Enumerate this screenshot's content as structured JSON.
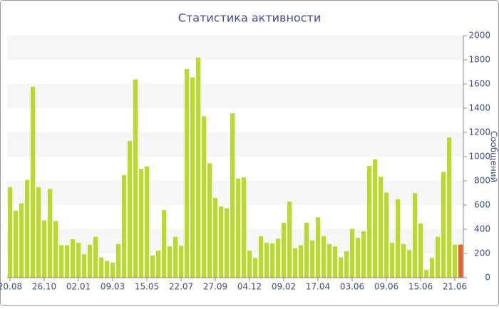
{
  "chart_data": {
    "type": "bar",
    "title": "Статистика активности",
    "y_label": "Сообщений",
    "categories": [
      "20.08",
      null,
      null,
      null,
      null,
      null,
      "26.10",
      null,
      null,
      null,
      null,
      null,
      "02.01",
      null,
      null,
      null,
      null,
      null,
      "09.03",
      null,
      null,
      null,
      null,
      null,
      "15.05",
      null,
      null,
      null,
      null,
      null,
      "22.07",
      null,
      null,
      null,
      null,
      null,
      "27.09",
      null,
      null,
      null,
      null,
      null,
      "04.12",
      null,
      null,
      null,
      null,
      null,
      "09.02",
      null,
      null,
      null,
      null,
      null,
      "17.04",
      null,
      null,
      null,
      null,
      null,
      "03.06",
      null,
      null,
      null,
      null,
      null,
      "09.06",
      null,
      null,
      null,
      null,
      null,
      "15.06",
      null,
      null,
      null,
      null,
      null,
      "21.06",
      null
    ],
    "values": [
      750,
      555,
      615,
      810,
      1580,
      750,
      475,
      735,
      470,
      270,
      270,
      320,
      290,
      195,
      275,
      340,
      170,
      140,
      125,
      280,
      850,
      1130,
      1640,
      900,
      920,
      185,
      225,
      560,
      260,
      340,
      265,
      1725,
      1655,
      1820,
      1335,
      945,
      660,
      590,
      575,
      1360,
      820,
      830,
      225,
      165,
      345,
      290,
      285,
      325,
      455,
      630,
      245,
      270,
      455,
      310,
      500,
      345,
      280,
      260,
      170,
      220,
      405,
      330,
      385,
      925,
      980,
      835,
      705,
      290,
      650,
      280,
      230,
      700,
      450,
      65,
      165,
      340,
      875,
      1160,
      275,
      275
    ],
    "colors": [
      "#b8d92e",
      "#b8d92e",
      "#b8d92e",
      "#b8d92e",
      "#b8d92e",
      "#b8d92e",
      "#b8d92e",
      "#b8d92e",
      "#b8d92e",
      "#b8d92e",
      "#b8d92e",
      "#b8d92e",
      "#b8d92e",
      "#b8d92e",
      "#b8d92e",
      "#b8d92e",
      "#b8d92e",
      "#b8d92e",
      "#b8d92e",
      "#b8d92e",
      "#b8d92e",
      "#b8d92e",
      "#b8d92e",
      "#b8d92e",
      "#b8d92e",
      "#b8d92e",
      "#b8d92e",
      "#b8d92e",
      "#b8d92e",
      "#b8d92e",
      "#b8d92e",
      "#b8d92e",
      "#b8d92e",
      "#b8d92e",
      "#b8d92e",
      "#b8d92e",
      "#b8d92e",
      "#b8d92e",
      "#b8d92e",
      "#b8d92e",
      "#b8d92e",
      "#b8d92e",
      "#b8d92e",
      "#b8d92e",
      "#b8d92e",
      "#b8d92e",
      "#b8d92e",
      "#b8d92e",
      "#b8d92e",
      "#b8d92e",
      "#b8d92e",
      "#b8d92e",
      "#b8d92e",
      "#b8d92e",
      "#b8d92e",
      "#b8d92e",
      "#b8d92e",
      "#b8d92e",
      "#b8d92e",
      "#b8d92e",
      "#b8d92e",
      "#b8d92e",
      "#b8d92e",
      "#b8d92e",
      "#b8d92e",
      "#b8d92e",
      "#b8d92e",
      "#b8d92e",
      "#b8d92e",
      "#b8d92e",
      "#b8d92e",
      "#b8d92e",
      "#b8d92e",
      "#b8d92e",
      "#b8d92e",
      "#b8d92e",
      "#b8d92e",
      "#b8d92e",
      "#b8d92e",
      "#e0652c"
    ],
    "ylim": [
      0,
      2000
    ],
    "yticks": [
      0,
      200,
      400,
      600,
      800,
      1000,
      1200,
      1400,
      1600,
      1800,
      2000
    ],
    "grid": "bands",
    "y_axis_side": "right"
  }
}
